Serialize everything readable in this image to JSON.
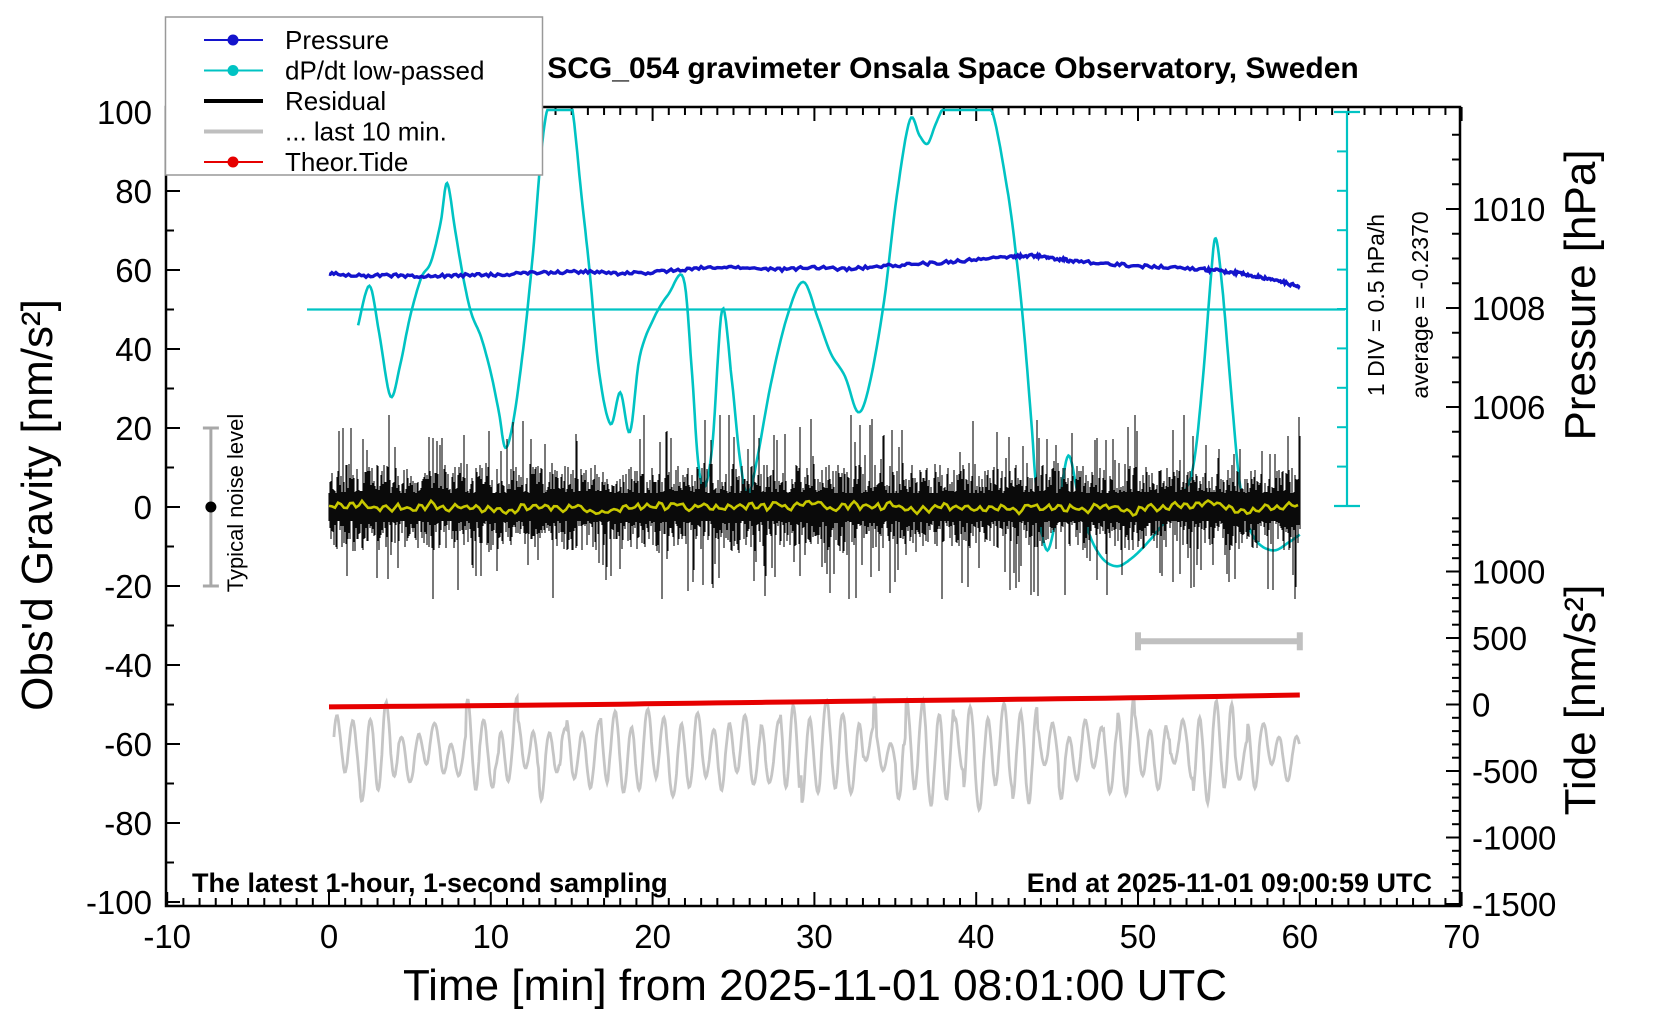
{
  "chart_data": {
    "type": "line",
    "title": "SCG_054 gravimeter Onsala Space Observatory, Sweden",
    "axes": {
      "x": {
        "title": "Time [min] from 2025-11-01 08:01:00 UTC",
        "range": [
          -10,
          70
        ],
        "major_ticks": [
          -10,
          0,
          10,
          20,
          30,
          40,
          50,
          60,
          70
        ],
        "minor_step": 1
      },
      "gravity": {
        "title": "Obs'd Gravity [nm/s²]",
        "range": [
          -100,
          100
        ],
        "major_ticks": [
          100,
          80,
          60,
          40,
          20,
          0,
          -20,
          -40,
          -60,
          -80,
          -100
        ],
        "minor_step": 10
      },
      "pressure": {
        "title": "Pressure [hPa]",
        "major_ticks": [
          1010,
          1008,
          1006
        ],
        "minor_step": 0.5
      },
      "tide": {
        "title": "Tide [nm/s²]",
        "major_ticks": [
          1000,
          500,
          0,
          -500,
          -1000,
          -1500
        ],
        "minor_step": 100
      }
    },
    "legend": {
      "items": [
        {
          "label": "Pressure",
          "color": "#1414cc",
          "marker": "dot",
          "line_width": 2
        },
        {
          "label": "dP/dt low-passed",
          "color": "#00c3c3",
          "marker": "dot",
          "line_width": 2
        },
        {
          "label": "Residual",
          "color": "#000000",
          "marker": "none",
          "line_width": 4
        },
        {
          "label": "... last 10 min.",
          "color": "#bfbfbf",
          "marker": "none",
          "line_width": 4
        },
        {
          "label": "Theor.Tide",
          "color": "#e60000",
          "marker": "dot",
          "line_width": 2
        }
      ]
    },
    "reference_line": {
      "name": "dP/dt zero (average) line",
      "gravity_value": 50
    },
    "scale_bar": {
      "label": "1 DIV = 0.5 hPa/h",
      "average_label": "average = -0.2370",
      "divisions": 10,
      "div_in_gravity_units": 10
    },
    "markers": {
      "noise_bar": {
        "label": "Typical noise level",
        "t": -7.3,
        "center_gravity": 0,
        "half_height_gravity": 20
      },
      "last10_window_bar": {
        "t_start": 50,
        "t_end": 60,
        "gravity": -34
      }
    },
    "annotations": {
      "bottom_left": "The latest 1-hour, 1-second sampling",
      "bottom_right": "End at 2025-11-01 09:00:59 UTC"
    },
    "series": [
      {
        "name": "Pressure",
        "color": "#1414cc",
        "y_axis": "pressure",
        "points_t_hPa": [
          [
            0,
            1008.7
          ],
          [
            2,
            1008.65
          ],
          [
            4,
            1008.66
          ],
          [
            6,
            1008.64
          ],
          [
            8,
            1008.66
          ],
          [
            10,
            1008.67
          ],
          [
            12,
            1008.7
          ],
          [
            14,
            1008.72
          ],
          [
            16,
            1008.73
          ],
          [
            18,
            1008.7
          ],
          [
            20,
            1008.72
          ],
          [
            22,
            1008.78
          ],
          [
            24,
            1008.82
          ],
          [
            26,
            1008.8
          ],
          [
            28,
            1008.78
          ],
          [
            30,
            1008.82
          ],
          [
            32,
            1008.79
          ],
          [
            34,
            1008.84
          ],
          [
            36,
            1008.88
          ],
          [
            38,
            1008.92
          ],
          [
            40,
            1008.98
          ],
          [
            42,
            1009.03
          ],
          [
            43,
            1009.05
          ],
          [
            44,
            1009.04
          ],
          [
            45,
            1008.99
          ],
          [
            46,
            1008.95
          ],
          [
            48,
            1008.9
          ],
          [
            50,
            1008.85
          ],
          [
            52,
            1008.82
          ],
          [
            54,
            1008.78
          ],
          [
            55,
            1008.75
          ],
          [
            56,
            1008.72
          ],
          [
            57,
            1008.65
          ],
          [
            58,
            1008.6
          ],
          [
            59,
            1008.52
          ],
          [
            60,
            1008.42
          ]
        ]
      },
      {
        "name": "dP/dt low-passed",
        "color": "#00c3c3",
        "y_axis": "gravity",
        "note": "plotted about the line at gravity=50; 1 DIV (10 gravity units) = 0.5 hPa/h; average = -0.2370 hPa/h",
        "points_t_g": [
          [
            1.8,
            46
          ],
          [
            2.5,
            56
          ],
          [
            3.1,
            44
          ],
          [
            3.8,
            28
          ],
          [
            4.4,
            36
          ],
          [
            5.0,
            48
          ],
          [
            5.7,
            58
          ],
          [
            6.3,
            62
          ],
          [
            6.9,
            72
          ],
          [
            7.3,
            82
          ],
          [
            7.8,
            70
          ],
          [
            8.3,
            58
          ],
          [
            8.8,
            49
          ],
          [
            9.4,
            43
          ],
          [
            10.0,
            34
          ],
          [
            10.5,
            24
          ],
          [
            10.9,
            15
          ],
          [
            11.4,
            22
          ],
          [
            12.0,
            40
          ],
          [
            12.6,
            64
          ],
          [
            13.1,
            89
          ],
          [
            13.5,
            101
          ],
          [
            14.0,
            106
          ],
          [
            14.7,
            107
          ],
          [
            15.1,
            99
          ],
          [
            15.6,
            79
          ],
          [
            16.1,
            60
          ],
          [
            16.7,
            34
          ],
          [
            17.4,
            21
          ],
          [
            18.0,
            29
          ],
          [
            18.6,
            19
          ],
          [
            19.2,
            38
          ],
          [
            20.1,
            48
          ],
          [
            21.0,
            54
          ],
          [
            21.9,
            58
          ],
          [
            22.4,
            36
          ],
          [
            22.8,
            12
          ],
          [
            23.2,
            5
          ],
          [
            23.7,
            16
          ],
          [
            24.3,
            50
          ],
          [
            24.9,
            32
          ],
          [
            25.4,
            12
          ],
          [
            25.9,
            3
          ],
          [
            26.5,
            13
          ],
          [
            27.3,
            31
          ],
          [
            28.3,
            48
          ],
          [
            29.3,
            57
          ],
          [
            30.2,
            48
          ],
          [
            31.0,
            39
          ],
          [
            31.9,
            33
          ],
          [
            32.7,
            24
          ],
          [
            33.4,
            31
          ],
          [
            34.3,
            52
          ],
          [
            35.1,
            79
          ],
          [
            35.9,
            98
          ],
          [
            36.5,
            94
          ],
          [
            37.0,
            92
          ],
          [
            37.5,
            97
          ],
          [
            38.1,
            102
          ],
          [
            39.0,
            105
          ],
          [
            40.0,
            106
          ],
          [
            41.0,
            100
          ],
          [
            41.9,
            81
          ],
          [
            42.4,
            66
          ],
          [
            42.9,
            47
          ],
          [
            43.4,
            22
          ],
          [
            43.8,
            1
          ],
          [
            44.4,
            -11
          ],
          [
            45.1,
            1
          ],
          [
            45.7,
            13
          ],
          [
            46.3,
            3
          ],
          [
            47.0,
            -7
          ],
          [
            47.8,
            -13
          ],
          [
            48.7,
            -15
          ],
          [
            49.6,
            -13
          ],
          [
            50.6,
            -9
          ],
          [
            51.6,
            -4
          ],
          [
            52.6,
            2
          ],
          [
            53.4,
            10
          ],
          [
            54.0,
            32
          ],
          [
            54.5,
            58
          ],
          [
            54.8,
            68
          ],
          [
            55.2,
            56
          ],
          [
            55.7,
            32
          ],
          [
            56.2,
            9
          ],
          [
            56.7,
            -3
          ],
          [
            57.4,
            -9
          ],
          [
            58.4,
            -11
          ],
          [
            59.3,
            -9
          ],
          [
            60.0,
            -7
          ]
        ]
      },
      {
        "name": "Residual",
        "color": "#000000",
        "y_axis": "gravity",
        "representation": "stochastic_noise_band",
        "t_range": [
          0,
          60
        ],
        "center": 0,
        "dense_half_width": 9,
        "spike_half_width_max": 23
      },
      {
        "name": "Residual low-passed (yellow overlay)",
        "color": "#c8c800",
        "y_axis": "gravity",
        "representation": "stochastic_line",
        "t_range": [
          0,
          60
        ],
        "center": 0,
        "amplitude": 2
      },
      {
        "name": "... last 10 min.",
        "color": "#c5c5c5",
        "y_axis": "gravity",
        "representation": "stochastic_oscillation",
        "t_range": [
          0.3,
          60
        ],
        "center": -62,
        "peak": -48,
        "trough": -77,
        "period_min": 1.0
      },
      {
        "name": "Theor.Tide",
        "color": "#e60000",
        "y_axis": "gravity",
        "points_t_g": [
          [
            0,
            -50.6
          ],
          [
            12,
            -50.2
          ],
          [
            24,
            -49.6
          ],
          [
            36,
            -49.0
          ],
          [
            48,
            -48.4
          ],
          [
            60,
            -47.6
          ]
        ],
        "tide_axis_equivalent_start_end": [
          [
            0,
            -20
          ],
          [
            60,
            65
          ]
        ]
      }
    ]
  },
  "colors": {
    "background": "#ffffff",
    "frame": "#000000",
    "pressure_blue": "#1414cc",
    "dpdt_cyan": "#00c3c3",
    "residual_black": "#0a0a0a",
    "lowpass_yellow": "#c8c800",
    "last10_gray": "#c5c5c5",
    "tide_red": "#e60000",
    "noisebar_gray": "#a8a8a8",
    "window_bar_gray": "#c0c0c0",
    "legend_border": "#999999"
  }
}
